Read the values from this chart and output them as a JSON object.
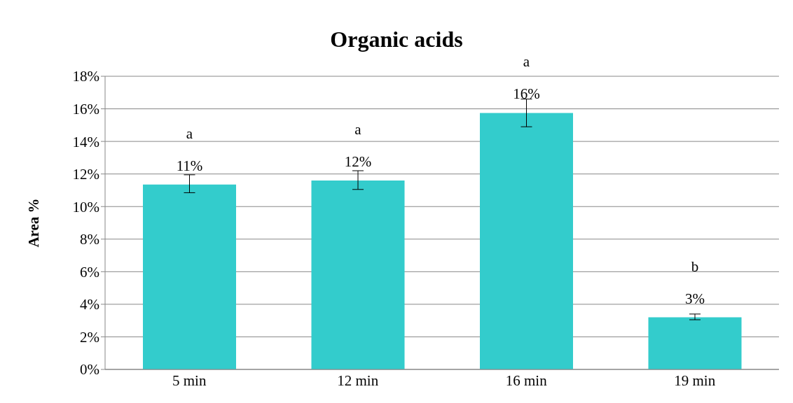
{
  "chart_data": {
    "type": "bar",
    "title": "Organic acids",
    "ylabel": "Area %",
    "categories": [
      "5 min",
      "12 min",
      "16 min",
      "19 min"
    ],
    "values": [
      11.35,
      11.6,
      15.75,
      3.2
    ],
    "errors": [
      [
        10.85,
        11.95
      ],
      [
        11.05,
        12.2
      ],
      [
        14.9,
        16.6
      ],
      [
        3.05,
        3.4
      ]
    ],
    "value_labels": [
      "11%",
      "12%",
      "16%",
      "3%"
    ],
    "color": "#33cccc",
    "ylim": [
      0,
      18
    ],
    "yticks": [
      {
        "value": 0,
        "label": "0%"
      },
      {
        "value": 2,
        "label": "2%"
      },
      {
        "value": 4,
        "label": "4%"
      },
      {
        "value": 6,
        "label": "6%"
      },
      {
        "value": 8,
        "label": "8%"
      },
      {
        "value": 10,
        "label": "10%"
      },
      {
        "value": 12,
        "label": "12%"
      },
      {
        "value": 14,
        "label": "14%"
      },
      {
        "value": 16,
        "label": "16%"
      },
      {
        "value": 18,
        "label": "18%"
      }
    ],
    "annotations": [
      "a",
      "a",
      "a",
      "b"
    ],
    "grid": "y",
    "legend": false
  }
}
